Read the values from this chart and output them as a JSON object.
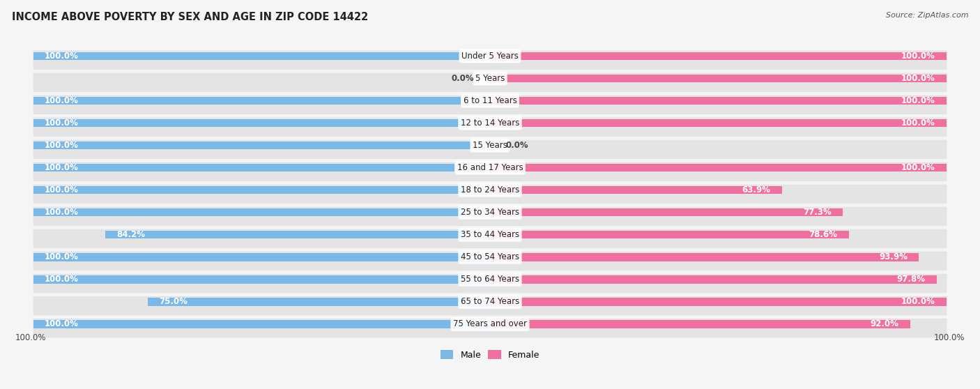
{
  "title": "INCOME ABOVE POVERTY BY SEX AND AGE IN ZIP CODE 14422",
  "source": "Source: ZipAtlas.com",
  "categories": [
    "Under 5 Years",
    "5 Years",
    "6 to 11 Years",
    "12 to 14 Years",
    "15 Years",
    "16 and 17 Years",
    "18 to 24 Years",
    "25 to 34 Years",
    "35 to 44 Years",
    "45 to 54 Years",
    "55 to 64 Years",
    "65 to 74 Years",
    "75 Years and over"
  ],
  "male_values": [
    100.0,
    0.0,
    100.0,
    100.0,
    100.0,
    100.0,
    100.0,
    100.0,
    84.2,
    100.0,
    100.0,
    75.0,
    100.0
  ],
  "female_values": [
    100.0,
    100.0,
    100.0,
    100.0,
    0.0,
    100.0,
    63.9,
    77.3,
    78.6,
    93.9,
    97.8,
    100.0,
    92.0
  ],
  "male_color": "#7ab8e8",
  "female_color": "#f06fa0",
  "male_light_color": "#c8dff0",
  "female_light_color": "#f9c0d8",
  "bar_height": 0.36,
  "bg_color": "#f5f5f5",
  "row_bg_color": "#e4e4e4",
  "label_fontsize": 8.5,
  "title_fontsize": 10.5,
  "max_val": 100.0,
  "cat_label_fontsize": 8.5
}
